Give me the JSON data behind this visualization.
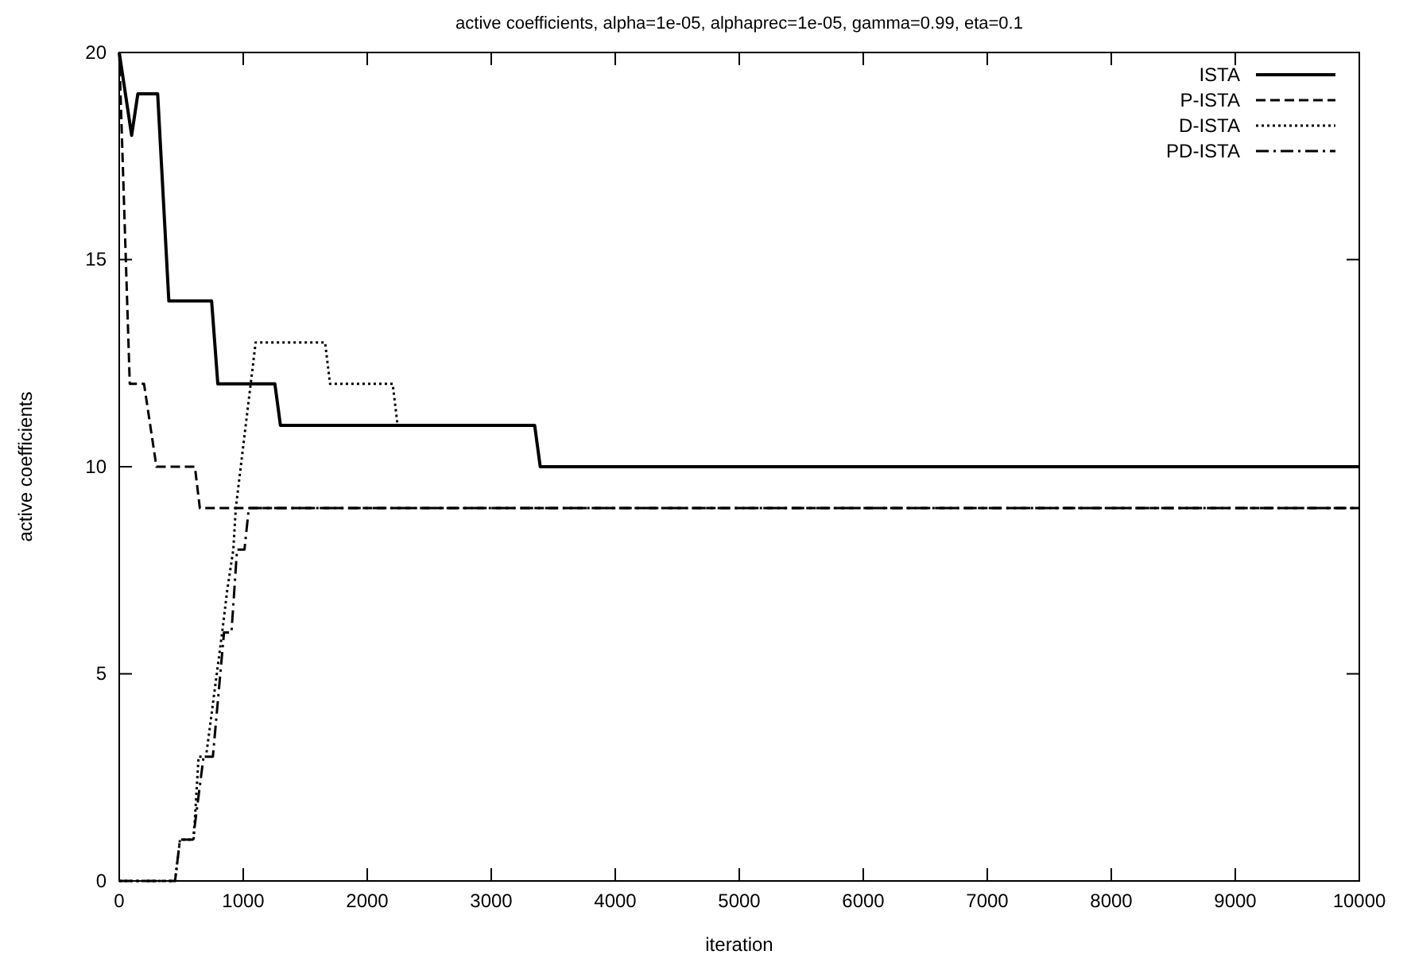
{
  "chart_data": {
    "type": "line",
    "title": "active coefficients, alpha=1e-05, alphaprec=1e-05, gamma=0.99, eta=0.1",
    "xlabel": "iteration",
    "ylabel": "active coefficients",
    "xlim": [
      0,
      10000
    ],
    "ylim": [
      0,
      20
    ],
    "xticks": [
      0,
      1000,
      2000,
      3000,
      4000,
      5000,
      6000,
      7000,
      8000,
      9000,
      10000
    ],
    "yticks": [
      0,
      5,
      10,
      15,
      20
    ],
    "grid": false,
    "legend": "top right",
    "marker": "none",
    "series": [
      {
        "name": "ISTA",
        "color": "#000000",
        "line_style": "solid",
        "x": [
          0,
          100,
          150,
          310,
          400,
          745,
          795,
          1255,
          1300,
          3350,
          3395,
          10000
        ],
        "values": [
          20,
          18,
          19,
          19,
          14,
          14,
          12,
          12,
          11,
          11,
          10,
          10
        ]
      },
      {
        "name": "P-ISTA",
        "color": "#000000",
        "line_style": "dashed",
        "x": [
          0,
          85,
          200,
          300,
          610,
          650,
          10000
        ],
        "values": [
          20,
          12,
          12,
          10,
          10,
          9,
          9
        ]
      },
      {
        "name": "D-ISTA",
        "color": "#000000",
        "line_style": "dotted",
        "x": [
          0,
          450,
          490,
          600,
          640,
          700,
          830,
          870,
          920,
          940,
          1100,
          1660,
          1700,
          2205,
          2245
        ],
        "values": [
          0,
          0,
          1,
          1,
          3,
          3,
          6,
          7,
          8,
          9,
          13,
          13,
          12,
          12,
          11
        ]
      },
      {
        "name": "PD-ISTA",
        "color": "#000000",
        "line_style": "dashdot",
        "x": [
          0,
          450,
          490,
          595,
          680,
          755,
          845,
          905,
          950,
          1010,
          1045,
          10000
        ],
        "values": [
          0,
          0,
          1,
          1,
          3,
          3,
          6,
          6,
          8,
          8,
          9,
          9
        ]
      }
    ]
  }
}
